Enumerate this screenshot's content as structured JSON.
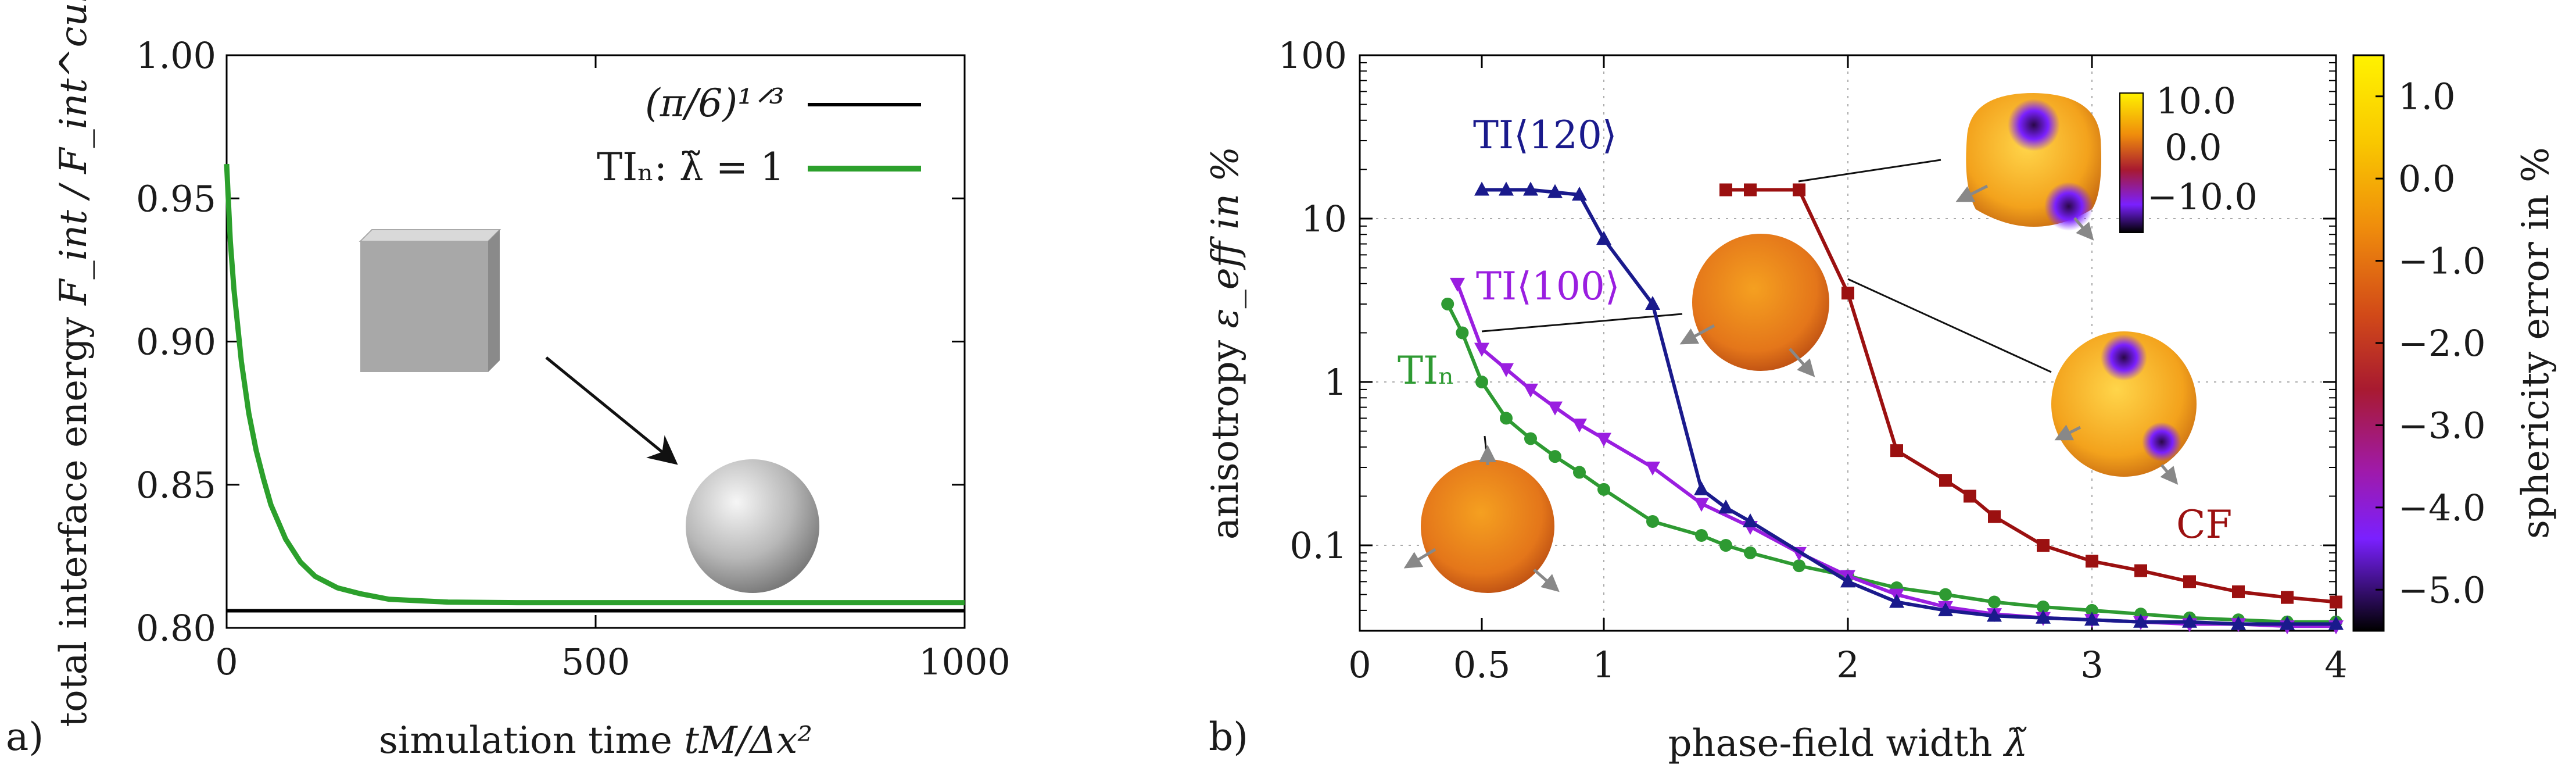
{
  "chart_data": [
    {
      "panel": "a)",
      "type": "line",
      "xlabel_text": "simulation time ",
      "xlabel_math": "tM/Δx²",
      "ylabel_text": "total interface energy ",
      "ylabel_math": "F_int / F_int^cube",
      "xlim": [
        0,
        1000
      ],
      "ylim": [
        0.8,
        1.0
      ],
      "xticks": [
        0,
        500,
        1000
      ],
      "yticks": [
        0.8,
        0.85,
        0.9,
        0.95,
        1.0
      ],
      "xtick_labels": [
        "0",
        "500",
        "1000"
      ],
      "ytick_labels": [
        "0.80",
        "0.85",
        "0.90",
        "0.95",
        "1.00"
      ],
      "legend_position": "top-right",
      "series": [
        {
          "name": "(π/6)^{1/3}",
          "legend_label": "(π/6)¹ᐟ³",
          "color": "#000000",
          "x": [
            0,
            1000
          ],
          "y": [
            0.806,
            0.806
          ]
        },
        {
          "name": "TI_n: λ̃ = 1",
          "legend_label": "TIₙ: λ̃ = 1",
          "color": "#2ca02c",
          "x": [
            0,
            5,
            10,
            20,
            30,
            40,
            50,
            60,
            80,
            100,
            120,
            150,
            180,
            220,
            260,
            300,
            400,
            500,
            700,
            1000
          ],
          "y": [
            0.962,
            0.935,
            0.918,
            0.893,
            0.875,
            0.862,
            0.852,
            0.843,
            0.831,
            0.823,
            0.818,
            0.814,
            0.812,
            0.81,
            0.8095,
            0.809,
            0.8088,
            0.8088,
            0.8088,
            0.8088
          ]
        }
      ],
      "annotation": "cube relaxes to sphere"
    },
    {
      "panel": "b)",
      "type": "line",
      "xlabel_text": "phase-field width ",
      "xlabel_math": "λ̃",
      "ylabel_text": "anisotropy ",
      "ylabel_math": "ε_eff in %",
      "yscale": "log",
      "xlim": [
        0,
        4
      ],
      "ylim": [
        0.03,
        100
      ],
      "xticks": [
        0,
        0.5,
        1,
        2,
        3,
        4
      ],
      "yticks": [
        0.1,
        1,
        10,
        100
      ],
      "xtick_labels": [
        "0",
        "0.5",
        "1",
        "2",
        "3",
        "4"
      ],
      "ytick_labels": [
        "0.1",
        "1",
        "10",
        "100"
      ],
      "grid": true,
      "series": [
        {
          "name": "TI_n",
          "label": "TIₙ",
          "color": "#2e9a32",
          "marker": "circle",
          "x": [
            0.36,
            0.42,
            0.5,
            0.6,
            0.7,
            0.8,
            0.9,
            1.0,
            1.2,
            1.4,
            1.5,
            1.6,
            1.8,
            2.0,
            2.2,
            2.4,
            2.6,
            2.8,
            3.0,
            3.2,
            3.4,
            3.6,
            3.8,
            4.0
          ],
          "y": [
            3.0,
            2.0,
            1.0,
            0.6,
            0.45,
            0.35,
            0.28,
            0.22,
            0.14,
            0.115,
            0.1,
            0.09,
            0.075,
            0.065,
            0.055,
            0.05,
            0.045,
            0.042,
            0.04,
            0.038,
            0.036,
            0.035,
            0.034,
            0.034
          ]
        },
        {
          "name": "TI_<100>",
          "label": "TI⟨100⟩",
          "color": "#9a1ee0",
          "marker": "triangle-down",
          "x": [
            0.4,
            0.5,
            0.6,
            0.7,
            0.8,
            0.9,
            1.0,
            1.2,
            1.4,
            1.6,
            1.8,
            2.0,
            2.2,
            2.4,
            2.6,
            2.8,
            3.0,
            3.2,
            3.4,
            3.6,
            3.8,
            4.0
          ],
          "y": [
            4.0,
            1.6,
            1.2,
            0.9,
            0.7,
            0.55,
            0.45,
            0.3,
            0.18,
            0.13,
            0.09,
            0.065,
            0.05,
            0.042,
            0.038,
            0.036,
            0.035,
            0.034,
            0.033,
            0.033,
            0.032,
            0.032
          ]
        },
        {
          "name": "TI_<120>",
          "label": "TI⟨120⟩",
          "color": "#1a1a8c",
          "marker": "triangle-up",
          "x": [
            0.5,
            0.6,
            0.7,
            0.8,
            0.9,
            1.0,
            1.2,
            1.4,
            1.5,
            1.6,
            2.0,
            2.2,
            2.4,
            2.6,
            2.8,
            3.0,
            3.2,
            3.4,
            3.6,
            3.8,
            4.0
          ],
          "y": [
            15,
            15,
            15,
            14.5,
            14,
            7.5,
            3.0,
            0.22,
            0.17,
            0.14,
            0.06,
            0.045,
            0.04,
            0.037,
            0.036,
            0.035,
            0.034,
            0.034,
            0.033,
            0.033,
            0.033
          ]
        },
        {
          "name": "CF",
          "label": "CF",
          "color": "#9b1010",
          "marker": "square",
          "x": [
            1.5,
            1.6,
            1.8,
            2.0,
            2.2,
            2.4,
            2.5,
            2.6,
            2.8,
            3.0,
            3.2,
            3.4,
            3.6,
            3.8,
            4.0
          ],
          "y": [
            15,
            15,
            15,
            3.5,
            0.38,
            0.25,
            0.2,
            0.15,
            0.1,
            0.08,
            0.07,
            0.06,
            0.052,
            0.048,
            0.045
          ]
        }
      ],
      "colorbar": {
        "label": "sphericity error in %",
        "range": [
          -5.5,
          1.5
        ],
        "ticks": [
          1.0,
          0.0,
          -1.0,
          -2.0,
          -3.0,
          -4.0,
          -5.0
        ],
        "tick_labels": [
          "1.0",
          "0.0",
          "−1.0",
          "−2.0",
          "−3.0",
          "−4.0",
          "−5.0"
        ],
        "colors": [
          "#fff200",
          "#f5a300",
          "#e06010",
          "#b01818",
          "#8a1090",
          "#7a20ff",
          "#000000"
        ]
      },
      "inset_colorbar": {
        "tick_labels": [
          "10.0",
          "0.0",
          "−10.0"
        ]
      }
    }
  ]
}
